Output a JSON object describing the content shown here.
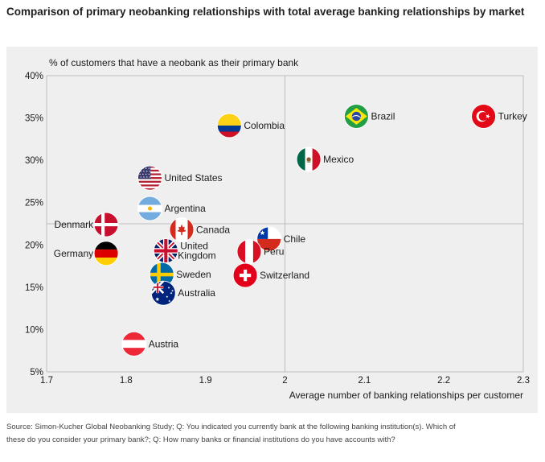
{
  "title": "Comparison of primary neobanking relationships with total average banking relationships by market",
  "source": "Source: Simon-Kucher Global Neobanking Study; Q: You indicated you currently bank at the following banking institution(s). Which of these do you consider your primary bank?; Q: How many banks or financial institutions do you have accounts with?",
  "colors": {
    "panel_bg": "#efefef",
    "gridline": "#bdbdbd",
    "text": "#1a1a1a"
  },
  "chart_data": {
    "type": "scatter",
    "title": "Comparison of primary neobanking relationships with total average banking relationships by market",
    "xlabel": "Average number of banking relationships per customer",
    "ylabel": "% of customers that have a neobank as their primary bank",
    "xlim": [
      1.7,
      2.3
    ],
    "ylim": [
      5,
      40
    ],
    "x_ticks": [
      "1.7",
      "1.8",
      "1.9",
      "2",
      "2.1",
      "2.2",
      "2.3"
    ],
    "y_ticks": [
      "5%",
      "10%",
      "15%",
      "20%",
      "25%",
      "30%",
      "35%",
      "40%"
    ],
    "reference_lines": {
      "x": 2.0,
      "y": 22.5
    },
    "points": [
      {
        "label": "Turkey",
        "x": 2.25,
        "y": 35.2,
        "flag": "turkey-flag",
        "label_side": "right"
      },
      {
        "label": "Brazil",
        "x": 2.09,
        "y": 35.2,
        "flag": "brazil-flag",
        "label_side": "right"
      },
      {
        "label": "Colombia",
        "x": 1.93,
        "y": 34.1,
        "flag": "colombia-flag",
        "label_side": "right"
      },
      {
        "label": "Mexico",
        "x": 2.03,
        "y": 30.1,
        "flag": "mexico-flag",
        "label_side": "right"
      },
      {
        "label": "United States",
        "x": 1.83,
        "y": 27.9,
        "flag": "usa-flag",
        "label_side": "right"
      },
      {
        "label": "Argentina",
        "x": 1.83,
        "y": 24.3,
        "flag": "argentina-flag",
        "label_side": "right"
      },
      {
        "label": "Denmark",
        "x": 1.775,
        "y": 22.4,
        "flag": "denmark-flag",
        "label_side": "left"
      },
      {
        "label": "Canada",
        "x": 1.87,
        "y": 21.8,
        "flag": "canada-flag",
        "label_side": "right"
      },
      {
        "label": "Chile",
        "x": 1.98,
        "y": 20.7,
        "flag": "chile-flag",
        "label_side": "right"
      },
      {
        "label": "Germany",
        "x": 1.775,
        "y": 19.0,
        "flag": "germany-flag",
        "label_side": "left"
      },
      {
        "label": "United Kingdom",
        "x": 1.85,
        "y": 19.3,
        "flag": "uk-flag",
        "label_side": "right"
      },
      {
        "label": "Peru",
        "x": 1.955,
        "y": 19.2,
        "flag": "peru-flag",
        "label_side": "right"
      },
      {
        "label": "Sweden",
        "x": 1.845,
        "y": 16.5,
        "flag": "sweden-flag",
        "label_side": "right"
      },
      {
        "label": "Switzerland",
        "x": 1.95,
        "y": 16.4,
        "flag": "switzerland-flag",
        "label_side": "right"
      },
      {
        "label": "Australia",
        "x": 1.847,
        "y": 14.3,
        "flag": "australia-flag",
        "label_side": "right"
      },
      {
        "label": "Austria",
        "x": 1.81,
        "y": 8.3,
        "flag": "austria-flag",
        "label_side": "right"
      }
    ]
  }
}
